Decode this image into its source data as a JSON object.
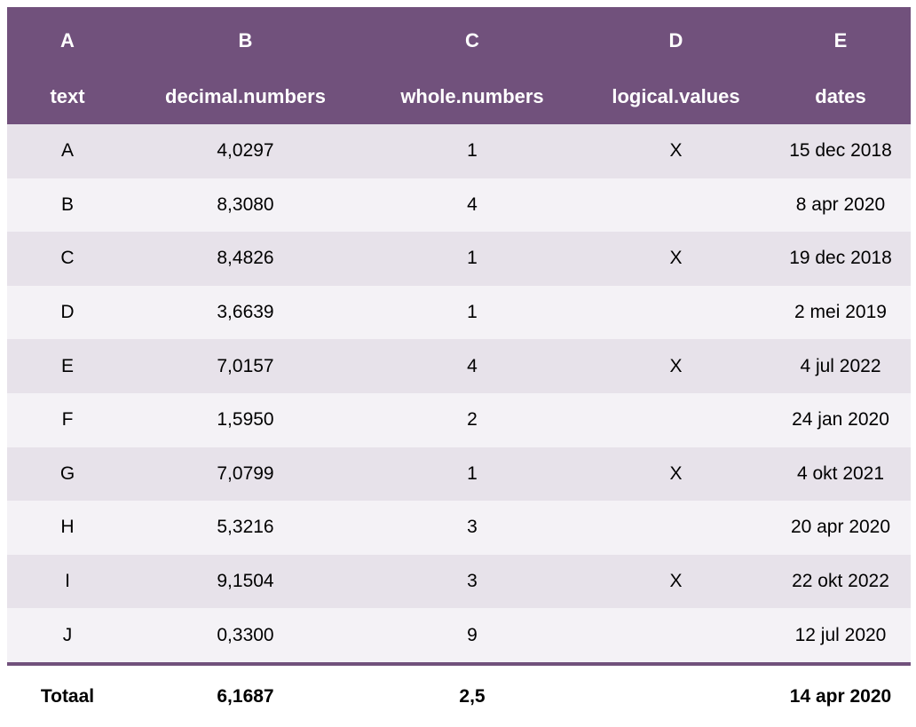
{
  "header": {
    "letters": [
      "A",
      "B",
      "C",
      "D",
      "E"
    ],
    "names": [
      "text",
      "decimal.numbers",
      "whole.numbers",
      "logical.values",
      "dates"
    ]
  },
  "rows": [
    [
      "A",
      "4,0297",
      "1",
      "X",
      "15 dec 2018"
    ],
    [
      "B",
      "8,3080",
      "4",
      "",
      "8 apr 2020"
    ],
    [
      "C",
      "8,4826",
      "1",
      "X",
      "19 dec 2018"
    ],
    [
      "D",
      "3,6639",
      "1",
      "",
      "2 mei 2019"
    ],
    [
      "E",
      "7,0157",
      "4",
      "X",
      "4 jul 2022"
    ],
    [
      "F",
      "1,5950",
      "2",
      "",
      "24 jan 2020"
    ],
    [
      "G",
      "7,0799",
      "1",
      "X",
      "4 okt 2021"
    ],
    [
      "H",
      "5,3216",
      "3",
      "",
      "20 apr 2020"
    ],
    [
      "I",
      "9,1504",
      "3",
      "X",
      "22 okt 2022"
    ],
    [
      "J",
      "0,3300",
      "9",
      "",
      "12 jul 2020"
    ]
  ],
  "footer": {
    "label": "Totaal",
    "decimal": "6,1687",
    "whole": "2,5",
    "logical": "",
    "date": "14 apr 2020"
  },
  "colors": {
    "header_bg": "#71517c",
    "header_text": "#ffffff",
    "row_odd": "#e7e2ea",
    "row_even": "#f4f2f6"
  }
}
